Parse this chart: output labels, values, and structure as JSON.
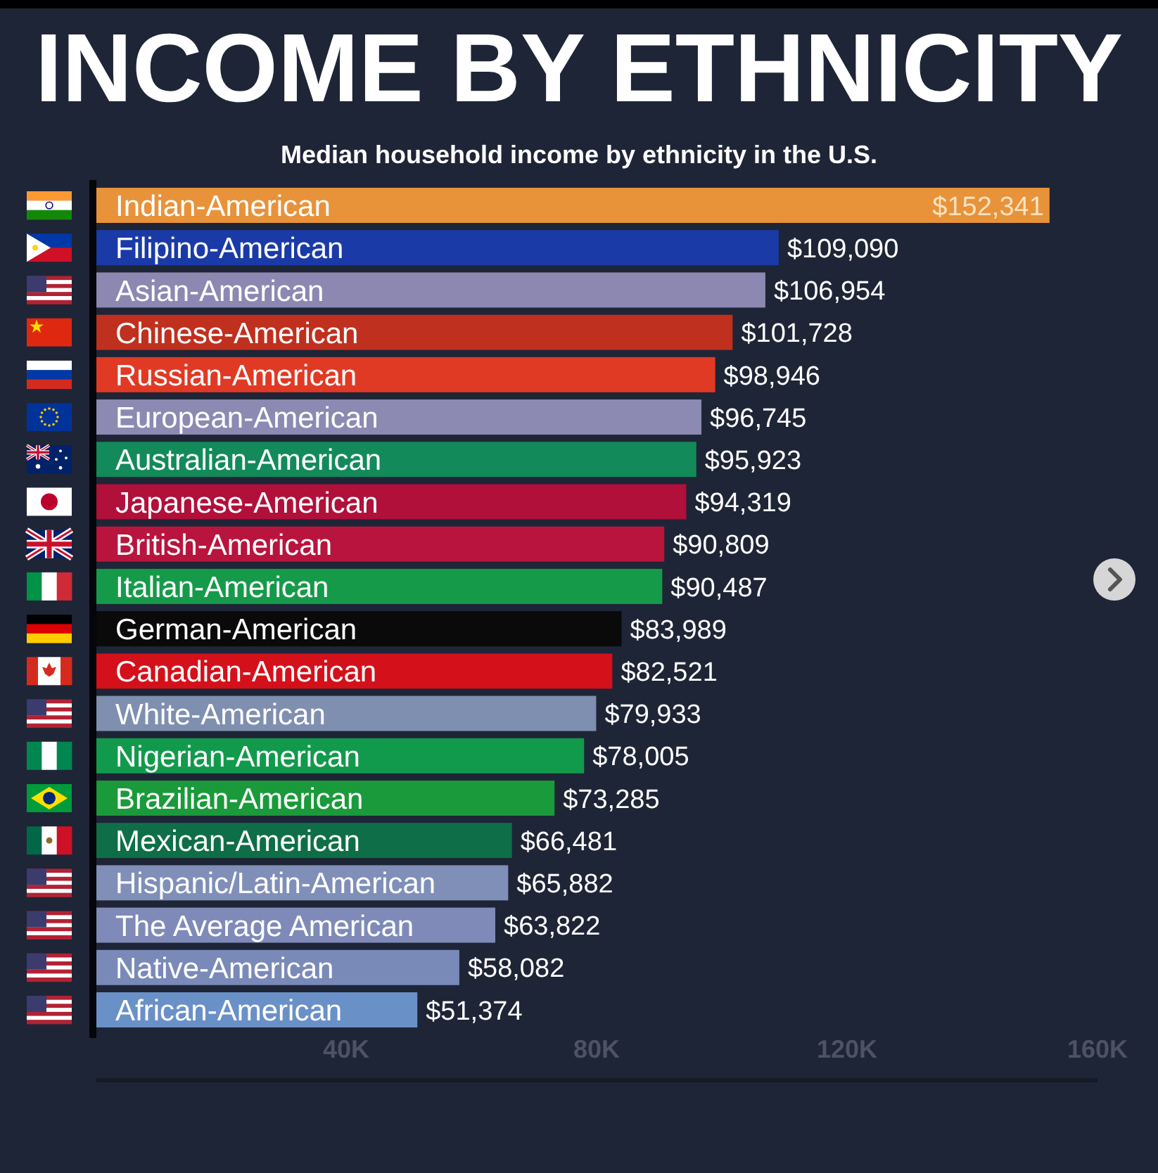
{
  "chart_data": {
    "type": "bar",
    "orientation": "horizontal",
    "title": "INCOME BY ETHNICITY",
    "subtitle": "Median household income by ethnicity in the U.S.",
    "categories": [
      "Indian-American",
      "Filipino-American",
      "Asian-American",
      "Chinese-American",
      "Russian-American",
      "European-American",
      "Australian-American",
      "Japanese-American",
      "British-American",
      "Italian-American",
      "German-American",
      "Canadian-American",
      "White-American",
      "Nigerian-American",
      "Brazilian-American",
      "Mexican-American",
      "Hispanic/Latin-American",
      "The Average American",
      "Native-American",
      "African-American"
    ],
    "values": [
      152341,
      109090,
      106954,
      101728,
      98946,
      96745,
      95923,
      94319,
      90809,
      90487,
      83989,
      82521,
      79933,
      78005,
      73285,
      66481,
      65882,
      63822,
      58082,
      51374
    ],
    "colors": [
      "#e8923a",
      "#1a3aa8",
      "#8c88b2",
      "#c0301f",
      "#e03a25",
      "#8c8ab2",
      "#138a5a",
      "#b0103a",
      "#b8143e",
      "#159a4a",
      "#0a0a0a",
      "#d4101a",
      "#7f8fb0",
      "#129a4c",
      "#1a9a3a",
      "#0e6e48",
      "#7f8fb8",
      "#7f8ab8",
      "#7a8ab8",
      "#6a90c8"
    ],
    "value_labels": [
      "$152,341",
      "$109,090",
      "$106,954",
      "$101,728",
      "$98,946",
      "$96,745",
      "$95,923",
      "$94,319",
      "$90,809",
      "$90,487",
      "$83,989",
      "$82,521",
      "$79,933",
      "$78,005",
      "$73,285",
      "$66,481",
      "$65,882",
      "$63,822",
      "$58,082",
      "$51,374"
    ],
    "xlim": [
      0,
      160000
    ],
    "xticks": [
      {
        "value": 40000,
        "label": "40K"
      },
      {
        "value": 80000,
        "label": "80K"
      },
      {
        "value": 120000,
        "label": "120K"
      },
      {
        "value": 160000,
        "label": "160K"
      }
    ]
  }
}
